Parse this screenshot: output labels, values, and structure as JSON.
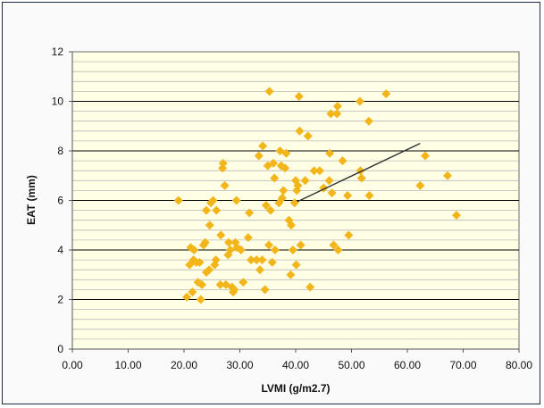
{
  "chart_data": {
    "type": "scatter",
    "title": "",
    "xlabel": "LVMI (g/m2.7)",
    "ylabel": "EAT (mm)",
    "xlim": [
      0,
      80
    ],
    "ylim": [
      0,
      12
    ],
    "x_ticks": [
      "0.00",
      "10.00",
      "20.00",
      "30.00",
      "40.00",
      "50.00",
      "60.00",
      "70.00",
      "80.00"
    ],
    "y_ticks": [
      "0",
      "2",
      "4",
      "6",
      "8",
      "10",
      "12"
    ],
    "grid": "horizontal",
    "legend": "none",
    "colors": {
      "plot_background": "#ffffe6",
      "marker": "#f2b51a",
      "trend_line": "#303030",
      "major_grid": "#000000",
      "minor_grid": "#b8b8b8"
    },
    "series": [
      {
        "marker": "diamond",
        "points": [
          [
            19,
            6.0
          ],
          [
            20.5,
            2.1
          ],
          [
            21,
            3.4
          ],
          [
            21.2,
            4.1
          ],
          [
            21.5,
            2.3
          ],
          [
            21.7,
            3.6
          ],
          [
            21.8,
            4.0
          ],
          [
            22.2,
            3.5
          ],
          [
            22.5,
            2.7
          ],
          [
            22.8,
            3.5
          ],
          [
            23,
            2.0
          ],
          [
            23.2,
            2.6
          ],
          [
            23.5,
            4.2
          ],
          [
            23.8,
            4.3
          ],
          [
            24,
            5.6
          ],
          [
            24,
            3.1
          ],
          [
            24.5,
            3.2
          ],
          [
            24.6,
            5.0
          ],
          [
            24.8,
            5.9
          ],
          [
            25.2,
            6.0
          ],
          [
            25.5,
            3.4
          ],
          [
            25.7,
            3.6
          ],
          [
            25.8,
            5.6
          ],
          [
            26.5,
            2.6
          ],
          [
            26.6,
            4.6
          ],
          [
            26.9,
            7.3
          ],
          [
            27.0,
            7.5
          ],
          [
            27.3,
            6.6
          ],
          [
            27.5,
            2.6
          ],
          [
            27.9,
            3.8
          ],
          [
            28.0,
            4.3
          ],
          [
            28.3,
            4.0
          ],
          [
            28.6,
            2.5
          ],
          [
            28.8,
            2.3
          ],
          [
            29.0,
            2.4
          ],
          [
            29.2,
            4.3
          ],
          [
            29.4,
            6.0
          ],
          [
            29.5,
            4.1
          ],
          [
            30.2,
            4.0
          ],
          [
            30.6,
            2.7
          ],
          [
            31.5,
            4.5
          ],
          [
            31.7,
            5.5
          ],
          [
            32.0,
            3.6
          ],
          [
            33.0,
            3.6
          ],
          [
            33.4,
            7.8
          ],
          [
            33.6,
            3.2
          ],
          [
            34.0,
            3.6
          ],
          [
            34.1,
            8.2
          ],
          [
            34.5,
            2.4
          ],
          [
            34.7,
            5.8
          ],
          [
            35.0,
            7.4
          ],
          [
            35.2,
            4.2
          ],
          [
            35.3,
            10.4
          ],
          [
            35.5,
            5.6
          ],
          [
            35.8,
            3.5
          ],
          [
            36.0,
            7.5
          ],
          [
            36.2,
            6.9
          ],
          [
            36.3,
            4.0
          ],
          [
            37.0,
            5.9
          ],
          [
            37.2,
            8.0
          ],
          [
            37.4,
            7.4
          ],
          [
            37.6,
            6.1
          ],
          [
            37.8,
            6.4
          ],
          [
            38.1,
            7.3
          ],
          [
            38.3,
            7.9
          ],
          [
            38.8,
            5.2
          ],
          [
            39.1,
            3.0
          ],
          [
            39.2,
            5.0
          ],
          [
            39.5,
            4.0
          ],
          [
            39.8,
            5.9
          ],
          [
            40.0,
            6.8
          ],
          [
            40.1,
            3.4
          ],
          [
            40.2,
            6.4
          ],
          [
            40.4,
            6.6
          ],
          [
            40.6,
            10.2
          ],
          [
            40.7,
            8.8
          ],
          [
            40.9,
            4.2
          ],
          [
            41.7,
            6.8
          ],
          [
            42.2,
            8.6
          ],
          [
            42.6,
            2.5
          ],
          [
            43.3,
            7.2
          ],
          [
            44.3,
            7.2
          ],
          [
            45.0,
            6.5
          ],
          [
            46.0,
            6.8
          ],
          [
            46.1,
            7.9
          ],
          [
            46.3,
            9.5
          ],
          [
            46.5,
            6.3
          ],
          [
            46.8,
            4.2
          ],
          [
            47.4,
            9.5
          ],
          [
            47.5,
            9.8
          ],
          [
            47.6,
            4.0
          ],
          [
            48.4,
            7.6
          ],
          [
            49.3,
            6.2
          ],
          [
            49.5,
            4.6
          ],
          [
            51.5,
            10.0
          ],
          [
            51.6,
            7.2
          ],
          [
            51.8,
            6.9
          ],
          [
            53.1,
            9.2
          ],
          [
            53.2,
            6.2
          ],
          [
            56.2,
            10.3
          ],
          [
            62.3,
            6.6
          ],
          [
            63.2,
            7.8
          ],
          [
            67.2,
            7.0
          ],
          [
            68.8,
            5.4
          ]
        ]
      }
    ],
    "trend_line": {
      "x": [
        40.3,
        62.3
      ],
      "y": [
        5.95,
        8.3
      ]
    }
  }
}
